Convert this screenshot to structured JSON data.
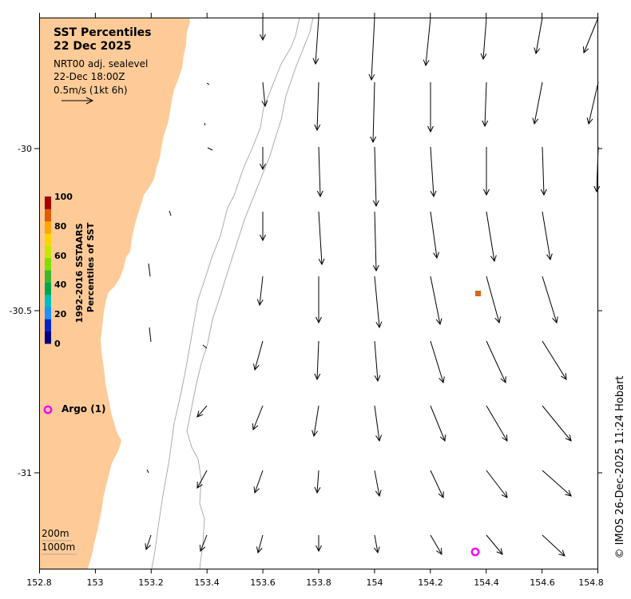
{
  "title": "SST Percentiles",
  "date": "22 Dec 2025",
  "model": "NRT00 adj. sealevel",
  "time": "22-Dec 18:00Z",
  "scale_label": "0.5m/s (1kt 6h)",
  "colorbar": {
    "label_line1": "1992-2016 SSTAARS",
    "label_line2": "Percentiles of SST",
    "ticks": [
      "100",
      "80",
      "60",
      "40",
      "20",
      "0"
    ],
    "colors": [
      "#00007f",
      "#0026c9",
      "#1e90ff",
      "#00bfbf",
      "#00a64d",
      "#3cb72e",
      "#7fdf00",
      "#c8e600",
      "#ffd400",
      "#ffa500",
      "#e05c00",
      "#a50000"
    ]
  },
  "argo_label": "Argo (1)",
  "argo_count": 1,
  "depth_labels": [
    "200m",
    "1000m"
  ],
  "x_ticks": [
    "152.8",
    "153",
    "153.2",
    "153.4",
    "153.6",
    "153.8",
    "154",
    "154.2",
    "154.4",
    "154.6",
    "154.8"
  ],
  "y_ticks": [
    "-30",
    "-30.5",
    "-31"
  ],
  "credit": "© IMOS 26-Dec-2025 11:24 Hobart",
  "colors": {
    "land": "#fecb98",
    "argo": "#ff00ff",
    "sst_pixel": "#d2691e"
  }
}
